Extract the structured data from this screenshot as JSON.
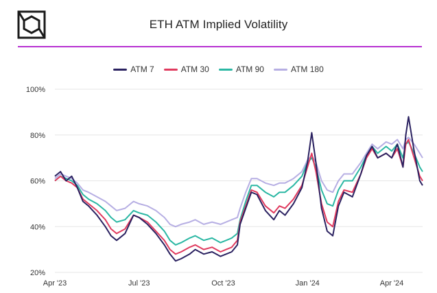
{
  "header": {
    "title": "ETH ATM Implied Volatility"
  },
  "colors": {
    "accent": "#b62fd1",
    "ATM 7": "#2a2160",
    "ATM 30": "#e03a5e",
    "ATM 90": "#2ab7a3",
    "ATM 180": "#b6aee3"
  },
  "chart_data": {
    "type": "line",
    "title": "ETH ATM Implied Volatility",
    "xlabel": "",
    "ylabel": "",
    "ylim": [
      20,
      100
    ],
    "y_ticks": [
      "100%",
      "80%",
      "60%",
      "40%",
      "20%"
    ],
    "x_ticks": [
      "Apr '23",
      "Jul '23",
      "Oct '23",
      "Jan '24",
      "Apr '24"
    ],
    "x_tick_positions_month": [
      0,
      3,
      6,
      9,
      12
    ],
    "x_range_month": [
      0,
      13.1
    ],
    "legend": [
      "ATM 7",
      "ATM 30",
      "ATM 90",
      "ATM 180"
    ],
    "grid": "horizontal",
    "series": [
      {
        "name": "ATM 7",
        "x": [
          0,
          0.2,
          0.4,
          0.6,
          0.8,
          1.0,
          1.2,
          1.5,
          1.8,
          2.0,
          2.2,
          2.5,
          2.8,
          3.0,
          3.3,
          3.6,
          3.9,
          4.1,
          4.3,
          4.5,
          4.8,
          5.0,
          5.3,
          5.6,
          5.9,
          6.1,
          6.3,
          6.5,
          6.6,
          6.8,
          7.0,
          7.2,
          7.5,
          7.8,
          8.0,
          8.2,
          8.5,
          8.8,
          9.0,
          9.15,
          9.3,
          9.5,
          9.7,
          9.9,
          10.1,
          10.3,
          10.6,
          10.9,
          11.1,
          11.3,
          11.5,
          11.8,
          12.0,
          12.2,
          12.4,
          12.5,
          12.6,
          12.8,
          13.0,
          13.1
        ],
        "values": [
          62,
          64,
          60,
          62,
          57,
          51,
          49,
          45,
          40,
          36,
          34,
          37,
          45,
          44,
          41,
          37,
          32,
          28,
          25,
          26,
          28,
          30,
          28,
          29,
          27,
          28,
          29,
          32,
          41,
          48,
          55,
          54,
          47,
          43,
          47,
          45,
          50,
          57,
          68,
          81,
          68,
          48,
          38,
          36,
          49,
          55,
          53,
          63,
          71,
          75,
          70,
          72,
          70,
          76,
          66,
          80,
          88,
          73,
          60,
          58
        ]
      },
      {
        "name": "ATM 30",
        "x": [
          0,
          0.2,
          0.4,
          0.6,
          0.8,
          1.0,
          1.2,
          1.5,
          1.8,
          2.0,
          2.2,
          2.5,
          2.8,
          3.0,
          3.3,
          3.6,
          3.9,
          4.1,
          4.3,
          4.5,
          4.8,
          5.0,
          5.3,
          5.6,
          5.9,
          6.1,
          6.3,
          6.5,
          6.6,
          6.8,
          7.0,
          7.2,
          7.5,
          7.8,
          8.0,
          8.2,
          8.5,
          8.8,
          9.0,
          9.15,
          9.3,
          9.5,
          9.7,
          9.9,
          10.1,
          10.3,
          10.6,
          10.9,
          11.1,
          11.3,
          11.5,
          11.8,
          12.0,
          12.2,
          12.4,
          12.5,
          12.6,
          12.8,
          13.0,
          13.1
        ],
        "values": [
          60,
          62,
          60,
          59,
          57,
          52,
          50,
          47,
          43,
          39,
          37,
          39,
          45,
          44,
          42,
          38,
          34,
          30,
          28,
          29,
          31,
          32,
          30,
          31,
          29,
          30,
          31,
          34,
          42,
          49,
          56,
          55,
          49,
          46,
          49,
          48,
          52,
          58,
          66,
          72,
          64,
          50,
          42,
          40,
          51,
          56,
          55,
          63,
          70,
          74,
          70,
          72,
          70,
          74,
          66,
          76,
          78,
          70,
          62,
          60
        ]
      },
      {
        "name": "ATM 90",
        "x": [
          0,
          0.2,
          0.4,
          0.6,
          0.8,
          1.0,
          1.2,
          1.5,
          1.8,
          2.0,
          2.2,
          2.5,
          2.8,
          3.0,
          3.3,
          3.6,
          3.9,
          4.1,
          4.3,
          4.5,
          4.8,
          5.0,
          5.3,
          5.6,
          5.9,
          6.1,
          6.3,
          6.5,
          6.6,
          6.8,
          7.0,
          7.2,
          7.5,
          7.8,
          8.0,
          8.2,
          8.5,
          8.8,
          9.0,
          9.15,
          9.3,
          9.5,
          9.7,
          9.9,
          10.1,
          10.3,
          10.6,
          10.9,
          11.1,
          11.3,
          11.5,
          11.8,
          12.0,
          12.2,
          12.4,
          12.5,
          12.6,
          12.8,
          13.0,
          13.1
        ],
        "values": [
          60,
          62,
          61,
          60,
          58,
          54,
          52,
          50,
          47,
          44,
          42,
          43,
          47,
          46,
          45,
          42,
          38,
          34,
          32,
          33,
          35,
          36,
          34,
          35,
          33,
          34,
          35,
          37,
          43,
          51,
          58,
          58,
          55,
          53,
          55,
          55,
          58,
          62,
          68,
          70,
          66,
          56,
          50,
          49,
          56,
          60,
          60,
          66,
          71,
          75,
          72,
          75,
          73,
          76,
          70,
          76,
          77,
          72,
          66,
          64
        ]
      },
      {
        "name": "ATM 180",
        "x": [
          0,
          0.2,
          0.4,
          0.6,
          0.8,
          1.0,
          1.2,
          1.5,
          1.8,
          2.0,
          2.2,
          2.5,
          2.8,
          3.0,
          3.3,
          3.6,
          3.9,
          4.1,
          4.3,
          4.5,
          4.8,
          5.0,
          5.3,
          5.6,
          5.9,
          6.1,
          6.3,
          6.5,
          6.6,
          6.8,
          7.0,
          7.2,
          7.5,
          7.8,
          8.0,
          8.2,
          8.5,
          8.8,
          9.0,
          9.15,
          9.3,
          9.5,
          9.7,
          9.9,
          10.1,
          10.3,
          10.6,
          10.9,
          11.1,
          11.3,
          11.5,
          11.8,
          12.0,
          12.2,
          12.4,
          12.5,
          12.6,
          12.8,
          13.0,
          13.1
        ],
        "values": [
          61,
          63,
          62,
          61,
          59,
          56,
          55,
          53,
          51,
          49,
          47,
          48,
          51,
          50,
          49,
          47,
          44,
          41,
          40,
          41,
          42,
          43,
          41,
          42,
          41,
          42,
          43,
          44,
          48,
          55,
          61,
          61,
          59,
          58,
          59,
          59,
          61,
          64,
          69,
          71,
          68,
          60,
          56,
          55,
          60,
          63,
          63,
          68,
          72,
          76,
          74,
          77,
          76,
          78,
          74,
          78,
          79,
          76,
          72,
          70
        ]
      }
    ]
  }
}
